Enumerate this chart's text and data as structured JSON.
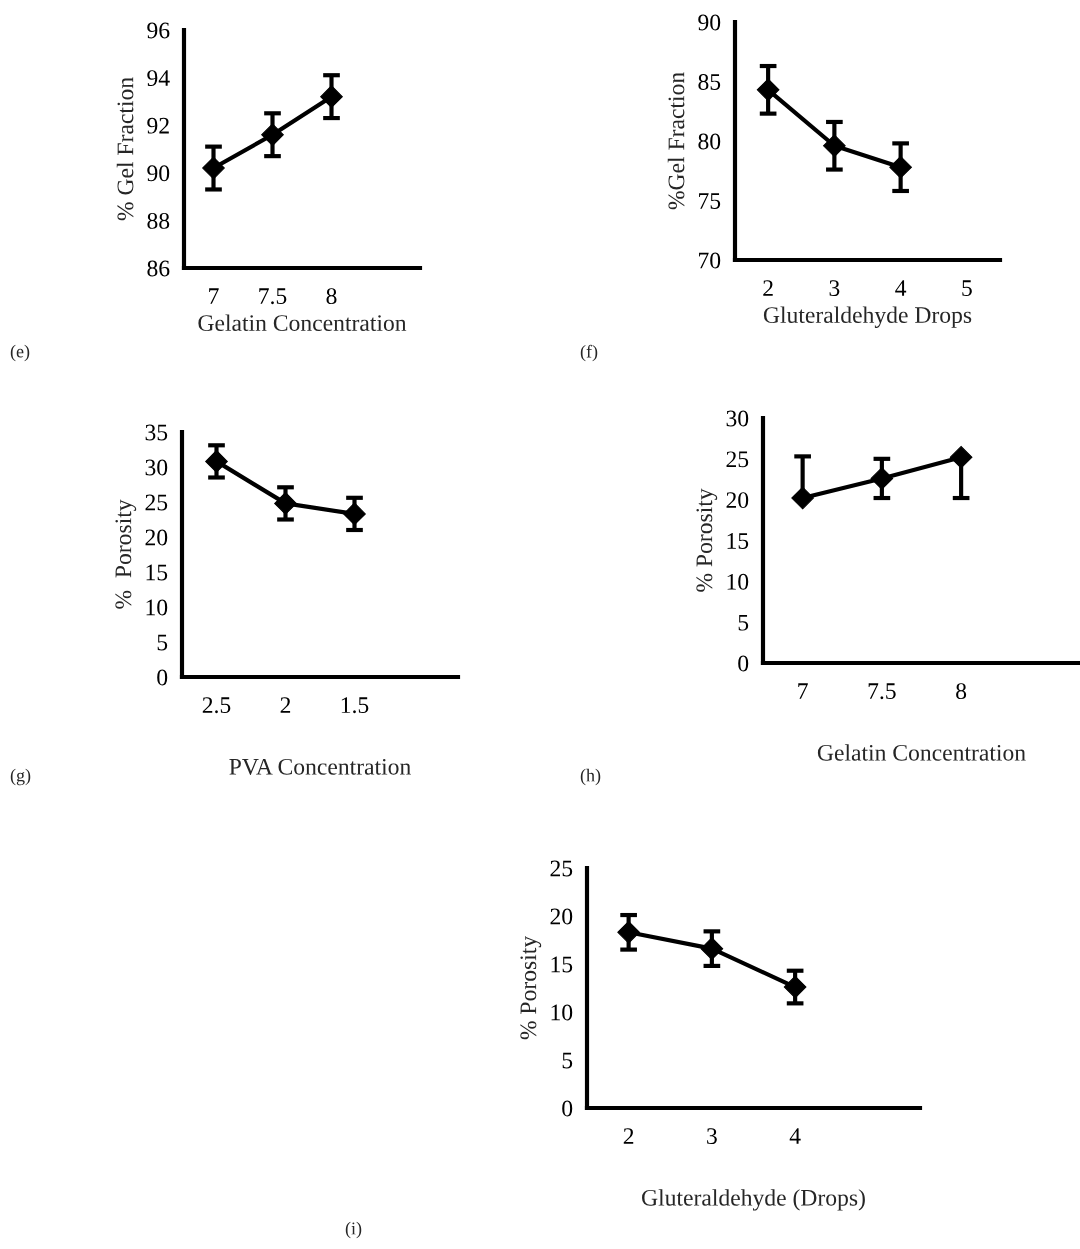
{
  "chart_data": [
    {
      "type": "line",
      "categories": [
        "7",
        "7.5",
        "8",
        null
      ],
      "values": [
        90.2,
        91.6,
        93.2,
        null
      ],
      "errors": [
        0.9,
        0.9,
        0.9,
        null
      ],
      "xlabel": "Gelatin Concentration",
      "ylabel": "% Gel Fraction",
      "ylim": [
        86,
        96
      ],
      "yticks": [
        86,
        88,
        90,
        92,
        94,
        96
      ],
      "marker": "diamond",
      "color": "#000000",
      "grid": false,
      "legend": false,
      "annotations": [
        "(e)"
      ]
    },
    {
      "type": "line",
      "categories": [
        "2",
        "3",
        "4",
        "5"
      ],
      "values": [
        84.3,
        79.6,
        77.8,
        null
      ],
      "errors": [
        2,
        2,
        2,
        null
      ],
      "xlabel": "Gluteraldehyde Drops",
      "ylabel": "%Gel Fraction",
      "ylim": [
        70,
        90
      ],
      "yticks": [
        70,
        75,
        80,
        85,
        90
      ],
      "marker": "diamond",
      "color": "#000000",
      "grid": false,
      "legend": false,
      "annotations": [
        "(f)"
      ]
    },
    {
      "type": "line",
      "categories": [
        "2.5",
        "2",
        "1.5",
        null
      ],
      "values": [
        30.8,
        24.8,
        23.3,
        null
      ],
      "errors": [
        2.3,
        2.3,
        2.3,
        null
      ],
      "xlabel": "PVA Concentration",
      "ylabel": "%  Porosity",
      "ylim": [
        0,
        35
      ],
      "yticks": [
        0,
        5,
        10,
        15,
        20,
        25,
        30,
        35
      ],
      "marker": "diamond",
      "color": "#000000",
      "grid": false,
      "legend": false,
      "annotations": [
        "(g)"
      ]
    },
    {
      "type": "line",
      "categories": [
        "7",
        "7.5",
        "8",
        null
      ],
      "values": [
        20.2,
        22.6,
        25.2,
        null
      ],
      "errors": [
        [
          20.2,
          25.3
        ],
        [
          20.2,
          25.0
        ],
        [
          20.2,
          25.2
        ],
        null
      ],
      "xlabel": "Gelatin Concentration",
      "ylabel": "% Porosity",
      "ylim": [
        0,
        30
      ],
      "yticks": [
        0,
        5,
        10,
        15,
        20,
        25,
        30
      ],
      "marker": "diamond",
      "color": "#000000",
      "grid": false,
      "legend": false,
      "annotations": [
        "(h)"
      ]
    },
    {
      "type": "line",
      "categories": [
        "2",
        "3",
        "4",
        null
      ],
      "values": [
        18.3,
        16.6,
        12.6,
        null
      ],
      "errors": [
        1.8,
        1.8,
        1.7,
        null
      ],
      "xlabel": "Gluteraldehyde (Drops)",
      "ylabel": "% Porosity",
      "ylim": [
        0,
        25
      ],
      "yticks": [
        0,
        5,
        10,
        15,
        20,
        25
      ],
      "marker": "diamond",
      "color": "#000000",
      "grid": false,
      "legend": false,
      "annotations": [
        "(i)"
      ]
    }
  ]
}
